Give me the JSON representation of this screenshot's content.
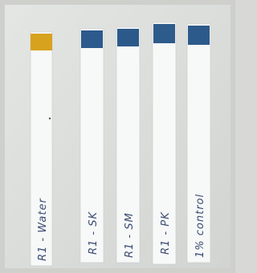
{
  "strips": [
    {
      "label": "R1 - Water"
    },
    {
      "label": "R1 - SK"
    },
    {
      "label": "R1 - SM"
    },
    {
      "label": "R1 - PK"
    },
    {
      "label": "1% control"
    }
  ]
}
